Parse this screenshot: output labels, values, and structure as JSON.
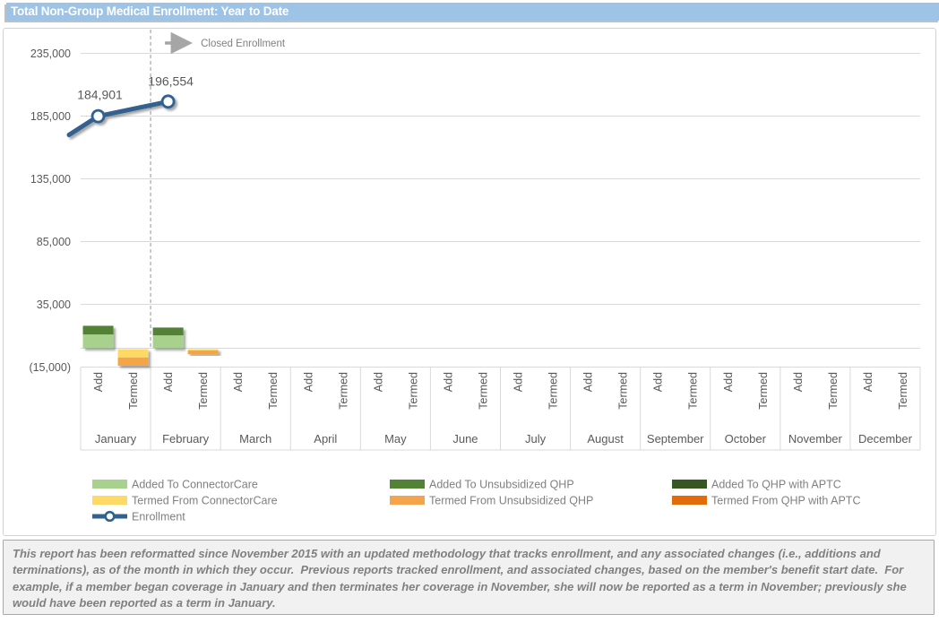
{
  "header": {
    "title": "Total Non-Group Medical Enrollment: Year to Date",
    "bg_color": "#9dc3e6",
    "text_color": "#ffffff"
  },
  "footnote": {
    "text": "This report has been reformatted since November 2015 with an updated methodology that tracks enrollment, and any associated changes (i.e., additions and terminations), as of the month in which they occur.  Previous reports tracked enrollment, and associated changes, based on the member's benefit start date.  For example, if a member began coverage in January and then terminates her coverage in November, she will now be reported as a term in November; previously she would have been reported as a term in January."
  },
  "chart_data": {
    "type": "combo-stacked-bar-line",
    "title": "Total Non-Group Medical Enrollment: Year to Date",
    "months": [
      "January",
      "February",
      "March",
      "April",
      "May",
      "June",
      "July",
      "August",
      "September",
      "October",
      "November",
      "December"
    ],
    "bar_categories": [
      "Add",
      "Termed"
    ],
    "y_axis": {
      "ticks": [
        {
          "value": 235000,
          "label": "235,000"
        },
        {
          "value": 185000,
          "label": "185,000"
        },
        {
          "value": 135000,
          "label": "135,000"
        },
        {
          "value": 85000,
          "label": "85,000"
        },
        {
          "value": 35000,
          "label": "35,000"
        },
        {
          "value": -15000,
          "label": "(15,000)"
        }
      ],
      "min": -15000,
      "grid": true,
      "grid_color": "#d9d9d9",
      "text_color": "#595959"
    },
    "series_add": [
      {
        "name": "Added To ConnectorCare",
        "color": "#a9d18e",
        "values": [
          11000,
          10300,
          0,
          0,
          0,
          0,
          0,
          0,
          0,
          0,
          0,
          0
        ]
      },
      {
        "name": "Added To Unsubsidized QHP",
        "color": "#538135",
        "values": [
          6900,
          6200,
          0,
          0,
          0,
          0,
          0,
          0,
          0,
          0,
          0,
          0
        ]
      },
      {
        "name": "Added To QHP with APTC",
        "color": "#375623",
        "values": [
          0,
          0,
          0,
          0,
          0,
          0,
          0,
          0,
          0,
          0,
          0,
          0
        ]
      }
    ],
    "series_termed": [
      {
        "name": "Termed From ConnectorCare",
        "color": "#ffd966",
        "values": [
          6700,
          1100,
          0,
          0,
          0,
          0,
          0,
          0,
          0,
          0,
          0,
          0
        ]
      },
      {
        "name": "Termed From Unsubsidized QHP",
        "color": "#f4a44a",
        "values": [
          6500,
          2900,
          0,
          0,
          0,
          0,
          0,
          0,
          0,
          0,
          0,
          0
        ]
      },
      {
        "name": "Termed From QHP with APTC",
        "color": "#e36c0a",
        "values": [
          0,
          0,
          0,
          0,
          0,
          0,
          0,
          0,
          0,
          0,
          0,
          0
        ]
      }
    ],
    "enrollment_line": {
      "name": "Enrollment",
      "color": "#31618f",
      "edge_start_value": 170000,
      "points": [
        {
          "month": "January",
          "value": 184901,
          "label": "184,901"
        },
        {
          "month": "February",
          "value": 196554,
          "label": "196,554"
        }
      ]
    },
    "annotation": {
      "label": "Closed Enrollment",
      "divider_after_month": "January",
      "divider_style": "dashed",
      "divider_color": "#a6a6a6",
      "arrow_color": "#a6a6a6",
      "text_color": "#808080"
    },
    "legend": {
      "position": "bottom",
      "rows": [
        [
          "Added To ConnectorCare",
          "Added To Unsubsidized QHP",
          "Added To QHP with APTC"
        ],
        [
          "Termed From ConnectorCare",
          "Termed From Unsubsidized QHP",
          "Termed From QHP with APTC"
        ],
        [
          "Enrollment"
        ]
      ],
      "text_color": "#808080"
    }
  }
}
